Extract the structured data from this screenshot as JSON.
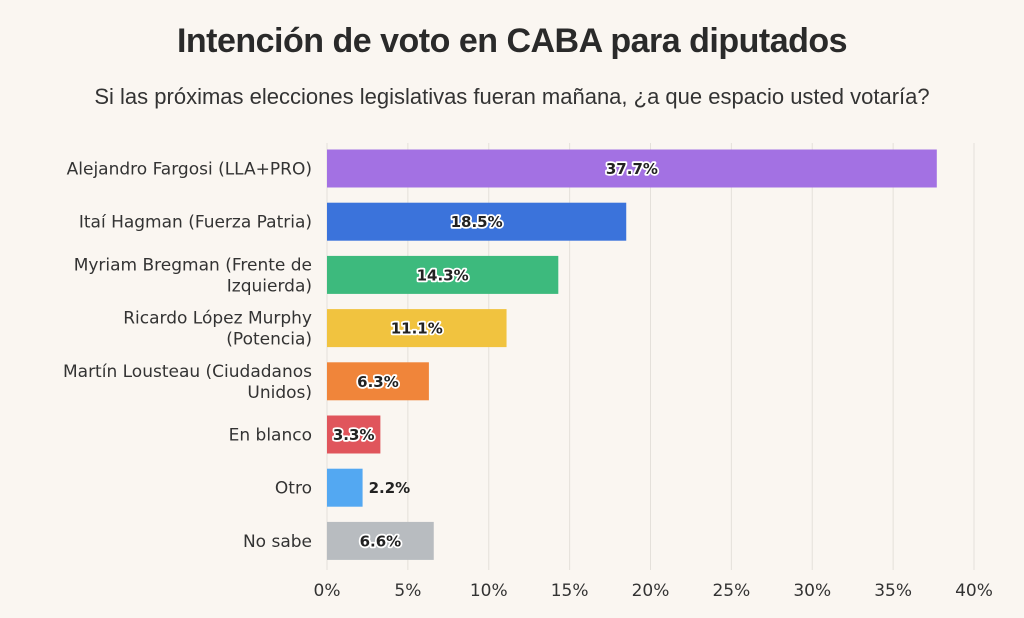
{
  "header": {
    "title": "Intención de voto en CABA para diputados",
    "subtitle": "Si las próximas elecciones legislativas fueran mañana, ¿a que espacio usted votaría?"
  },
  "chart_data": {
    "type": "bar",
    "orientation": "horizontal",
    "title": "Intención de voto en CABA para diputados",
    "subtitle": "Si las próximas elecciones legislativas fueran mañana, ¿a que espacio usted votaría?",
    "categories": [
      [
        "Alejandro Fargosi (LLA+PRO)"
      ],
      [
        "Itaí Hagman (Fuerza Patria)"
      ],
      [
        "Myriam Bregman (Frente de",
        "Izquierda)"
      ],
      [
        "Ricardo López Murphy",
        "(Potencia)"
      ],
      [
        "Martín Lousteau (Ciudadanos",
        "Unidos)"
      ],
      [
        "En blanco"
      ],
      [
        "Otro"
      ],
      [
        "No sabe"
      ]
    ],
    "values": [
      37.7,
      18.5,
      14.3,
      11.1,
      6.3,
      3.3,
      2.2,
      6.6
    ],
    "value_labels": [
      "37.7%",
      "18.5%",
      "14.3%",
      "11.1%",
      "6.3%",
      "3.3%",
      "2.2%",
      "6.6%"
    ],
    "colors": [
      "#a371e3",
      "#3b73db",
      "#3dba7d",
      "#f1c33f",
      "#f0853a",
      "#e0555c",
      "#53a8f2",
      "#b8bcc0"
    ],
    "xlim": [
      0,
      40
    ],
    "x_ticks": [
      0,
      5,
      10,
      15,
      20,
      25,
      30,
      35,
      40
    ],
    "x_tick_labels": [
      "0%",
      "5%",
      "10%",
      "15%",
      "20%",
      "25%",
      "30%",
      "35%",
      "40%"
    ],
    "xlabel": "",
    "ylabel": "",
    "grid": "vertical"
  }
}
